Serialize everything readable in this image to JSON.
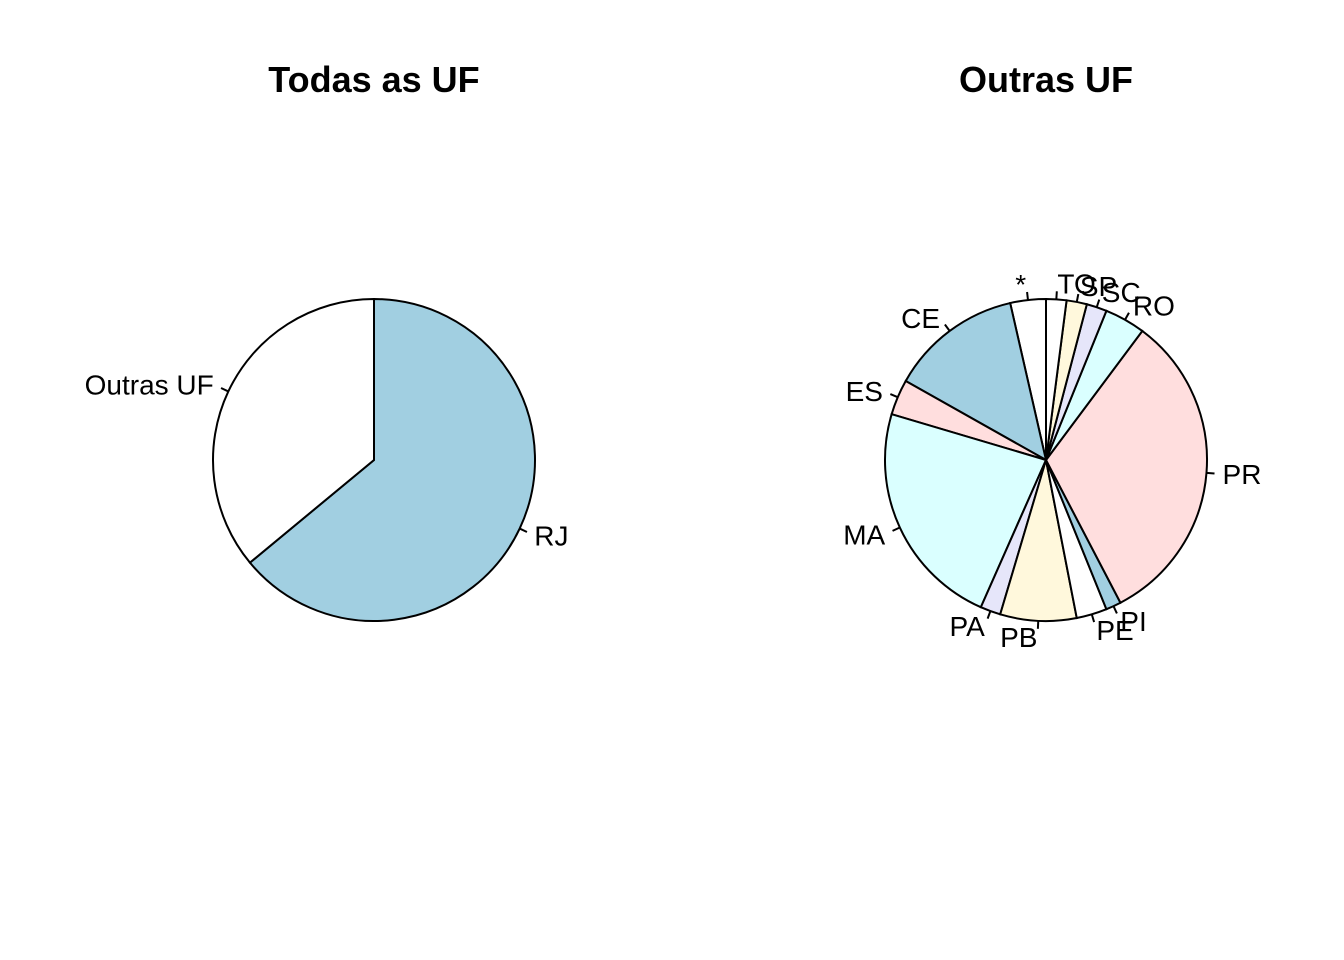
{
  "chart_data": [
    {
      "type": "pie",
      "title": "Todas as UF",
      "direction": "clockwise",
      "start": "12 o'clock",
      "slices": [
        {
          "label": "RJ",
          "value": 64.0,
          "color": "#A1CFE1"
        },
        {
          "label": "Outras UF",
          "value": 36.0,
          "color": "#FFFFFF"
        }
      ]
    },
    {
      "type": "pie",
      "title": "Outras UF",
      "direction": "counterclockwise",
      "start": "12 o'clock",
      "slices": [
        {
          "label": "*",
          "value": 3.5,
          "color": "#FFFFFF"
        },
        {
          "label": "CE",
          "value": 13.0,
          "color": "#A1CFE1"
        },
        {
          "label": "ES",
          "value": 3.5,
          "color": "#FFDEDE"
        },
        {
          "label": "MA",
          "value": 22.5,
          "color": "#DAFFFF"
        },
        {
          "label": "PA",
          "value": 2.0,
          "color": "#E6E6FA"
        },
        {
          "label": "PB",
          "value": 7.5,
          "color": "#FFF8DC"
        },
        {
          "label": "PE",
          "value": 3.0,
          "color": "#FFFFFF"
        },
        {
          "label": "PI",
          "value": 1.5,
          "color": "#A1CFE1"
        },
        {
          "label": "PR",
          "value": 31.5,
          "color": "#FFDEDE"
        },
        {
          "label": "RO",
          "value": 4.0,
          "color": "#DAFFFF"
        },
        {
          "label": "SC",
          "value": 2.0,
          "color": "#E6E6FA"
        },
        {
          "label": "SP",
          "value": 2.0,
          "color": "#FFF8DC"
        },
        {
          "label": "TO",
          "value": 2.0,
          "color": "#FFFFFF"
        }
      ]
    }
  ]
}
